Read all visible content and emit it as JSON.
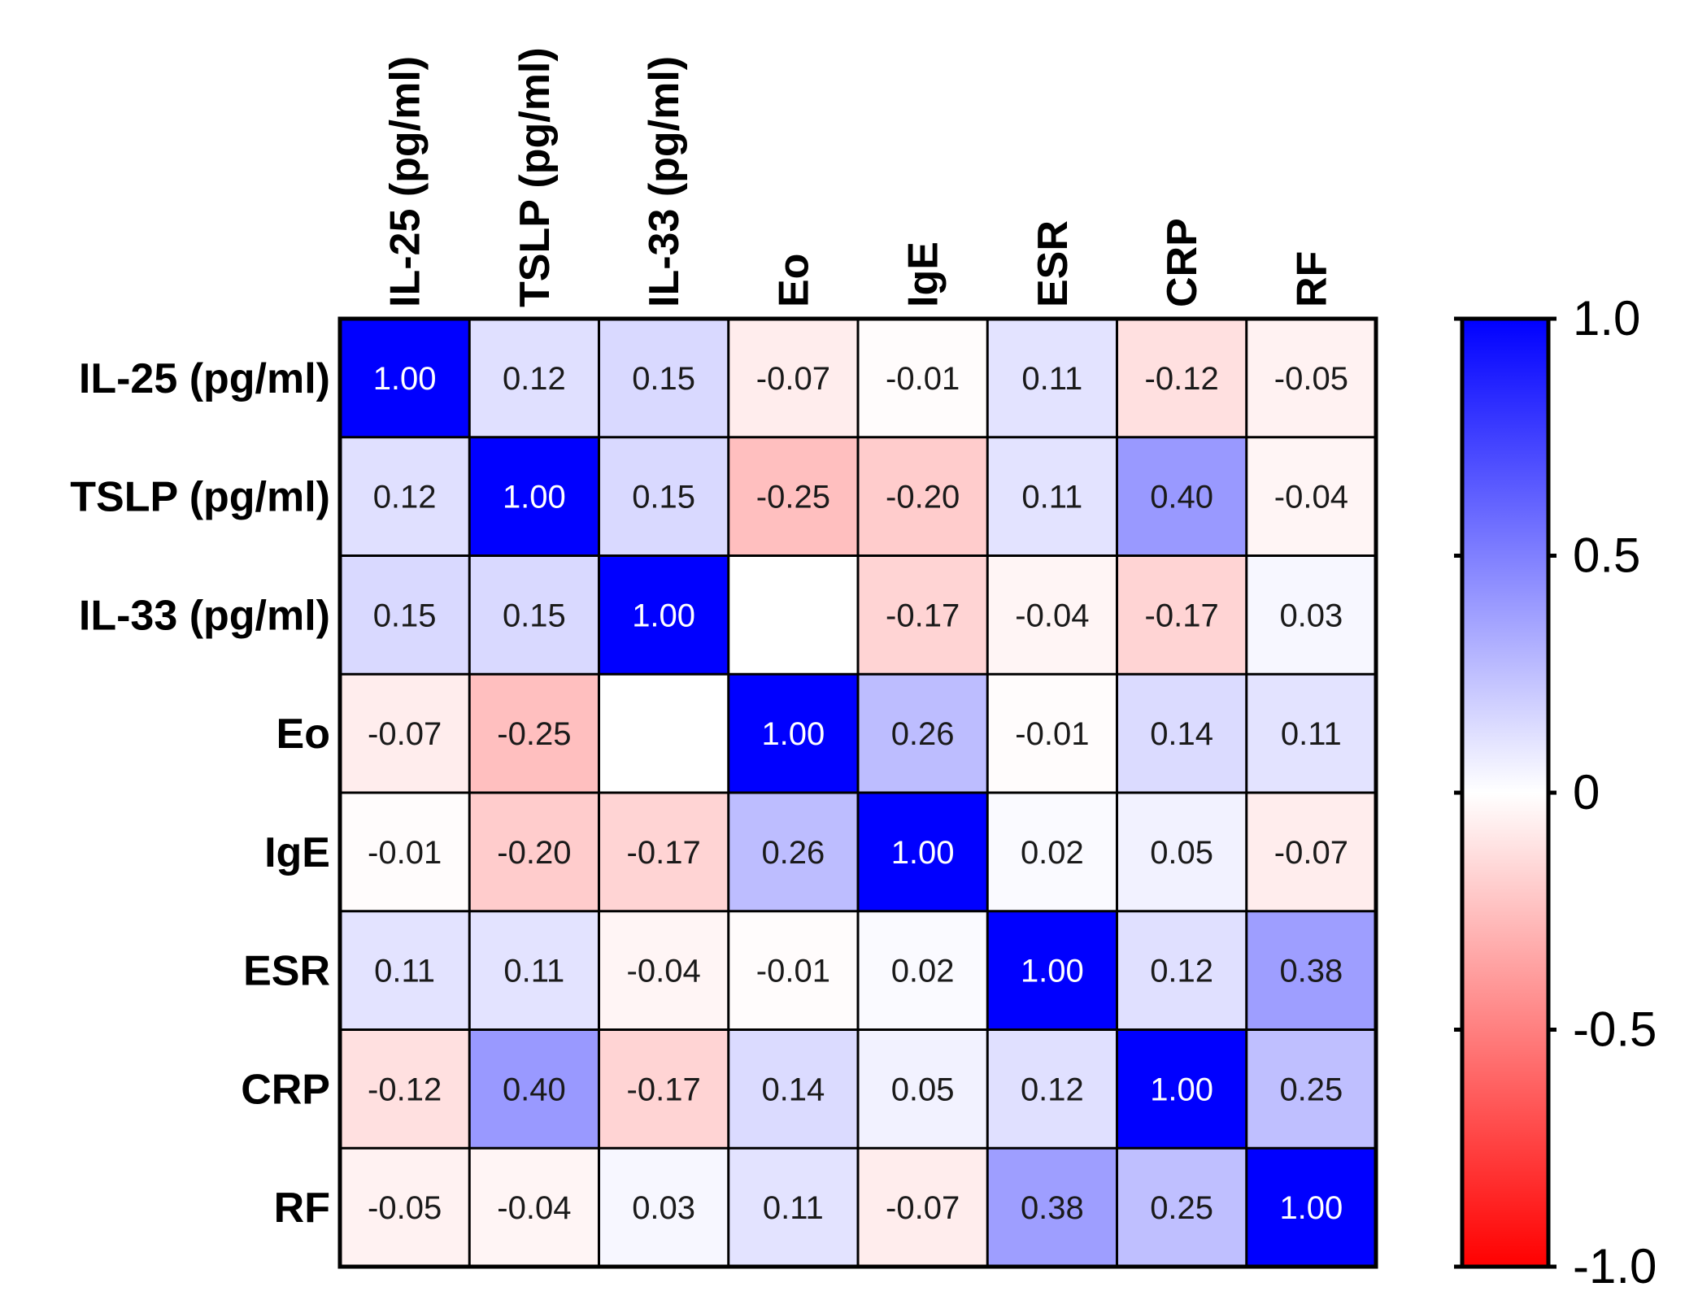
{
  "chart_data": {
    "type": "heatmap",
    "title": "",
    "variables": [
      "IL-25 (pg/ml)",
      "TSLP (pg/ml)",
      "IL-33 (pg/ml)",
      "Eo",
      "IgE",
      "ESR",
      "CRP",
      "RF"
    ],
    "column_labels": [
      "IL-25 (pg/ml)",
      "TSLP (pg/ml)",
      "IL-33 (pg/ml)",
      "Eo",
      "IgE",
      "ESR",
      "CRP",
      "RF"
    ],
    "row_labels": [
      "IL-25 (pg/ml)",
      "TSLP (pg/ml)",
      "IL-33 (pg/ml)",
      "Eo",
      "IgE",
      "ESR",
      "CRP",
      "RF"
    ],
    "values": [
      [
        1.0,
        0.12,
        0.15,
        -0.07,
        -0.01,
        0.11,
        -0.12,
        -0.05
      ],
      [
        0.12,
        1.0,
        0.15,
        -0.25,
        -0.2,
        0.11,
        0.4,
        -0.04
      ],
      [
        0.15,
        0.15,
        1.0,
        null,
        -0.17,
        -0.04,
        -0.17,
        0.03
      ],
      [
        -0.07,
        -0.25,
        null,
        1.0,
        0.26,
        -0.01,
        0.14,
        0.11
      ],
      [
        -0.01,
        -0.2,
        -0.17,
        0.26,
        1.0,
        0.02,
        0.05,
        -0.07
      ],
      [
        0.11,
        0.11,
        -0.04,
        -0.01,
        0.02,
        1.0,
        0.12,
        0.38
      ],
      [
        -0.12,
        0.4,
        -0.17,
        0.14,
        0.05,
        0.12,
        1.0,
        0.25
      ],
      [
        -0.05,
        -0.04,
        0.03,
        0.11,
        -0.07,
        0.38,
        0.25,
        1.0
      ]
    ],
    "value_labels": [
      [
        "1.00",
        "0.12",
        "0.15",
        "-0.07",
        "-0.01",
        "0.11",
        "-0.12",
        "-0.05"
      ],
      [
        "0.12",
        "1.00",
        "0.15",
        "-0.25",
        "-0.20",
        "0.11",
        "0.40",
        "-0.04"
      ],
      [
        "0.15",
        "0.15",
        "1.00",
        "",
        "-0.17",
        "-0.04",
        "-0.17",
        "0.03"
      ],
      [
        "-0.07",
        "-0.25",
        "",
        "1.00",
        "0.26",
        "-0.01",
        "0.14",
        "0.11"
      ],
      [
        "-0.01",
        "-0.20",
        "-0.17",
        "0.26",
        "1.00",
        "0.02",
        "0.05",
        "-0.07"
      ],
      [
        "0.11",
        "0.11",
        "-0.04",
        "-0.01",
        "0.02",
        "1.00",
        "0.12",
        "0.38"
      ],
      [
        "-0.12",
        "0.40",
        "-0.17",
        "0.14",
        "0.05",
        "0.12",
        "1.00",
        "0.25"
      ],
      [
        "-0.05",
        "-0.04",
        "0.03",
        "0.11",
        "-0.07",
        "0.38",
        "0.25",
        "1.00"
      ]
    ],
    "colorbar": {
      "range": [
        -1.0,
        1.0
      ],
      "ticks": [
        1.0,
        0.5,
        0,
        -0.5,
        -1.0
      ],
      "tick_labels": [
        "1.0",
        "0.5",
        "0",
        "-0.5",
        "-1.0"
      ],
      "colors": {
        "low": "#ff0000",
        "mid": "#ffffff",
        "high": "#0000ff"
      }
    }
  }
}
